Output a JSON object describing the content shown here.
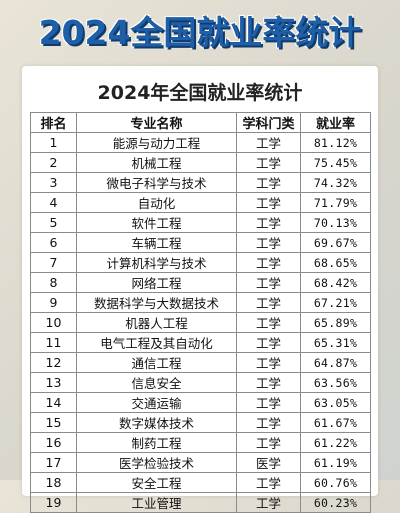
{
  "banner": {
    "title": "2024全国就业率统计"
  },
  "card": {
    "title": "2024年全国就业率统计"
  },
  "table": {
    "headers": [
      "排名",
      "专业名称",
      "学科门类",
      "就业率"
    ],
    "rows": [
      {
        "rank": "1",
        "major": "能源与动力工程",
        "category": "工学",
        "rate": "81.12%"
      },
      {
        "rank": "2",
        "major": "机械工程",
        "category": "工学",
        "rate": "75.45%"
      },
      {
        "rank": "3",
        "major": "微电子科学与技术",
        "category": "工学",
        "rate": "74.32%"
      },
      {
        "rank": "4",
        "major": "自动化",
        "category": "工学",
        "rate": "71.79%"
      },
      {
        "rank": "5",
        "major": "软件工程",
        "category": "工学",
        "rate": "70.13%"
      },
      {
        "rank": "6",
        "major": "车辆工程",
        "category": "工学",
        "rate": "69.67%"
      },
      {
        "rank": "7",
        "major": "计算机科学与技术",
        "category": "工学",
        "rate": "68.65%"
      },
      {
        "rank": "8",
        "major": "网络工程",
        "category": "工学",
        "rate": "68.42%"
      },
      {
        "rank": "9",
        "major": "数据科学与大数据技术",
        "category": "工学",
        "rate": "67.21%"
      },
      {
        "rank": "10",
        "major": "机器人工程",
        "category": "工学",
        "rate": "65.89%"
      },
      {
        "rank": "11",
        "major": "电气工程及其自动化",
        "category": "工学",
        "rate": "65.31%"
      },
      {
        "rank": "12",
        "major": "通信工程",
        "category": "工学",
        "rate": "64.87%"
      },
      {
        "rank": "13",
        "major": "信息安全",
        "category": "工学",
        "rate": "63.56%"
      },
      {
        "rank": "14",
        "major": "交通运输",
        "category": "工学",
        "rate": "63.05%"
      },
      {
        "rank": "15",
        "major": "数字媒体技术",
        "category": "工学",
        "rate": "61.67%"
      },
      {
        "rank": "16",
        "major": "制药工程",
        "category": "工学",
        "rate": "61.22%"
      },
      {
        "rank": "17",
        "major": "医学检验技术",
        "category": "医学",
        "rate": "61.19%"
      },
      {
        "rank": "18",
        "major": "安全工程",
        "category": "工学",
        "rate": "60.76%"
      },
      {
        "rank": "19",
        "major": "工业管理",
        "category": "工学",
        "rate": "60.23%"
      }
    ]
  }
}
